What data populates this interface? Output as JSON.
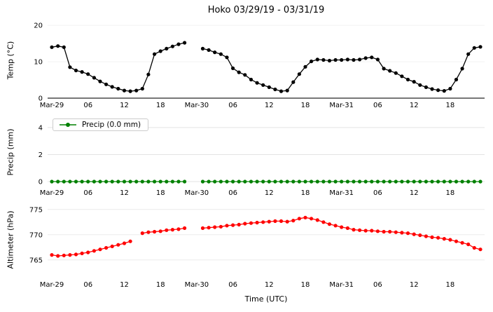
{
  "title": "Hoko 03/29/19 - 03/31/19",
  "x": {
    "label": "Time (UTC)",
    "xlim": [
      -0.7,
      71.7
    ],
    "hours": [
      0,
      1,
      2,
      3,
      4,
      5,
      6,
      7,
      8,
      9,
      10,
      11,
      12,
      13,
      14,
      15,
      16,
      17,
      18,
      19,
      20,
      21,
      22,
      23,
      24,
      25,
      26,
      27,
      28,
      29,
      30,
      31,
      32,
      33,
      34,
      35,
      36,
      37,
      38,
      39,
      40,
      41,
      42,
      43,
      44,
      45,
      46,
      47,
      48,
      49,
      50,
      51,
      52,
      53,
      54,
      55,
      56,
      57,
      58,
      59,
      60,
      61,
      62,
      63,
      64,
      65,
      66,
      67,
      68,
      69,
      70,
      71
    ],
    "tick_hours": [
      0,
      6,
      12,
      18,
      24,
      30,
      36,
      42,
      48,
      54,
      60,
      66
    ],
    "tick_labels": [
      "Mar-29",
      "06",
      "12",
      "18",
      "Mar-30",
      "06",
      "12",
      "18",
      "Mar-31",
      "06",
      "12",
      "18"
    ]
  },
  "chart_data": [
    {
      "type": "line",
      "ylabel": "Temp (°C)",
      "ylim": [
        0,
        20.6
      ],
      "yticks": [
        0,
        10,
        20
      ],
      "series": [
        {
          "name": "Temp",
          "color": "#000000",
          "values": [
            14.0,
            14.3,
            14.0,
            8.5,
            7.6,
            7.2,
            6.6,
            5.6,
            4.6,
            3.8,
            3.1,
            2.6,
            2.1,
            1.9,
            2.1,
            2.6,
            6.5,
            12.1,
            12.9,
            13.6,
            14.2,
            14.8,
            15.2,
            null,
            null,
            13.6,
            13.2,
            12.6,
            12.1,
            11.2,
            8.2,
            7.1,
            6.4,
            5.1,
            4.2,
            3.6,
            3.0,
            2.4,
            1.9,
            2.1,
            4.4,
            6.6,
            8.6,
            10.1,
            10.6,
            10.5,
            10.3,
            10.5,
            10.5,
            10.6,
            10.5,
            10.6,
            11.0,
            11.2,
            10.6,
            8.1,
            7.5,
            6.9,
            6.0,
            5.1,
            4.5,
            3.6,
            3.0,
            2.5,
            2.2,
            2.0,
            2.6,
            5.1,
            8.1,
            12.1,
            13.8,
            14.1
          ]
        }
      ]
    },
    {
      "type": "line",
      "ylabel": "Precip (mm)",
      "ylim": [
        -0.31,
        4.62
      ],
      "yticks": [
        0,
        2,
        4
      ],
      "legend": "Precip (0.0 mm)",
      "legend_position": "upper left",
      "series": [
        {
          "name": "Precip",
          "color": "#008000",
          "values": [
            0,
            0,
            0,
            0,
            0,
            0,
            0,
            0,
            0,
            0,
            0,
            0,
            0,
            0,
            0,
            0,
            0,
            0,
            0,
            0,
            0,
            0,
            0,
            null,
            null,
            0,
            0,
            0,
            0,
            0,
            0,
            0,
            0,
            0,
            0,
            0,
            0,
            0,
            0,
            0,
            0,
            0,
            0,
            0,
            0,
            0,
            0,
            0,
            0,
            0,
            0,
            0,
            0,
            0,
            0,
            0,
            0,
            0,
            0,
            0,
            0,
            0,
            0,
            0,
            0,
            0,
            0,
            0,
            0,
            0,
            0,
            0
          ]
        }
      ]
    },
    {
      "type": "line",
      "ylabel": "Altimeter (hPa)",
      "ylim": [
        761.5,
        776.5
      ],
      "yticks": [
        765,
        770,
        775
      ],
      "series": [
        {
          "name": "Altimeter",
          "color": "#ff0000",
          "values": [
            766.0,
            765.8,
            765.9,
            766.0,
            766.1,
            766.3,
            766.5,
            766.8,
            767.1,
            767.4,
            767.7,
            768.0,
            768.3,
            768.7,
            null,
            770.3,
            770.5,
            770.6,
            770.7,
            770.9,
            771.0,
            771.1,
            771.3,
            null,
            null,
            771.3,
            771.4,
            771.5,
            771.6,
            771.8,
            771.9,
            772.0,
            772.2,
            772.3,
            772.4,
            772.5,
            772.6,
            772.7,
            772.7,
            772.6,
            772.8,
            773.2,
            773.4,
            773.2,
            772.9,
            772.5,
            772.1,
            771.8,
            771.5,
            771.3,
            771.0,
            770.9,
            770.8,
            770.8,
            770.7,
            770.6,
            770.6,
            770.5,
            770.4,
            770.3,
            770.1,
            769.9,
            769.7,
            769.5,
            769.4,
            769.2,
            769.0,
            768.7,
            768.4,
            768.1,
            767.4,
            767.1
          ]
        }
      ]
    }
  ]
}
